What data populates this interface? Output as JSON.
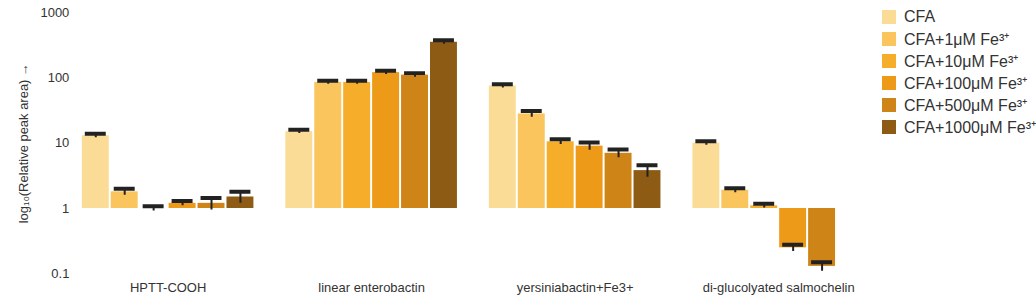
{
  "chart_data": {
    "type": "bar",
    "log": "y",
    "legend": "right",
    "ylabel": "log₁₀(Relative peak area)",
    "categories": [
      "HPTT-COOH",
      "linear enterobactin",
      "yersiniabactin+Fe3+",
      "di-glucolyated salmochelin"
    ],
    "ylim": [
      0.1,
      1000
    ],
    "yticks": [
      0.1,
      1,
      10,
      100,
      1000
    ],
    "series": [
      {
        "name": "CFA",
        "color": "#fbdc96",
        "values": [
          13,
          15,
          75,
          10
        ],
        "errors": [
          0.9,
          1.0,
          5,
          0.7
        ]
      },
      {
        "name": "CFA+1μM Fe³⁺",
        "color": "#f9c55c",
        "values": [
          1.8,
          85,
          28,
          1.9
        ],
        "errors": [
          0.2,
          5,
          3,
          0.15
        ]
      },
      {
        "name": "CFA+10μM Fe³⁺",
        "color": "#f5ad2a",
        "values": [
          1.0,
          85,
          10.5,
          1.1
        ],
        "errors": [
          0.08,
          5,
          1,
          0.08
        ]
      },
      {
        "name": "CFA+100μM Fe³⁺",
        "color": "#ec9a18",
        "values": [
          1.2,
          120,
          9,
          0.25
        ],
        "errors": [
          0.1,
          8,
          1.2,
          0.03
        ]
      },
      {
        "name": "CFA+500μM Fe³⁺",
        "color": "#cf8417",
        "values": [
          1.2,
          110,
          7,
          0.13
        ],
        "errors": [
          0.25,
          8,
          1,
          0.02
        ]
      },
      {
        "name": "CFA+1000μM Fe³⁺",
        "color": "#8e5b14",
        "values": [
          1.5,
          350,
          3.8,
          null
        ],
        "errors": [
          0.3,
          25,
          0.8,
          null
        ]
      }
    ]
  }
}
